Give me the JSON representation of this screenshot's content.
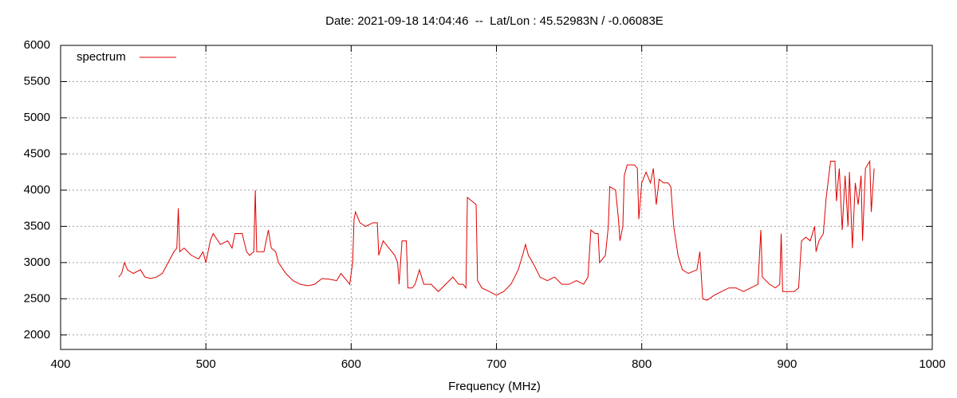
{
  "chart_data": {
    "type": "line",
    "title": "Date: 2021-09-18 14:04:46  --  Lat/Lon : 45.52983N / -0.06083E",
    "x_label": "Frequency (MHz)",
    "xlim": [
      400,
      1000
    ],
    "xticks": [
      400,
      500,
      600,
      700,
      800,
      900,
      1000
    ],
    "ylim": [
      1800,
      6000
    ],
    "yticks": [
      2000,
      2500,
      3000,
      3500,
      4000,
      4500,
      5000,
      5500,
      6000
    ],
    "grid": true,
    "legend": "top-left",
    "x": [
      440,
      442,
      444,
      446,
      450,
      455,
      458,
      462,
      466,
      470,
      474,
      478,
      480,
      481,
      482,
      485,
      490,
      495,
      498,
      500,
      503,
      505,
      510,
      515,
      518,
      520,
      525,
      528,
      530,
      533,
      534,
      535,
      540,
      543,
      545,
      548,
      550,
      555,
      560,
      565,
      570,
      575,
      578,
      580,
      585,
      590,
      593,
      597,
      599,
      601,
      602,
      603,
      606,
      610,
      615,
      618,
      619,
      622,
      626,
      630,
      632,
      633,
      635,
      638,
      639,
      642,
      644,
      647,
      650,
      655,
      660,
      665,
      670,
      674,
      677,
      679,
      680,
      683,
      686,
      687,
      690,
      695,
      700,
      705,
      710,
      715,
      718,
      720,
      722,
      725,
      730,
      735,
      740,
      745,
      750,
      755,
      760,
      763,
      765,
      768,
      770,
      771,
      775,
      777,
      778,
      782,
      784,
      785,
      787,
      788,
      790,
      795,
      797,
      798,
      800,
      803,
      806,
      808,
      810,
      812,
      815,
      818,
      820,
      822,
      825,
      828,
      832,
      838,
      840,
      842,
      845,
      850,
      855,
      860,
      865,
      870,
      875,
      880,
      882,
      883,
      888,
      892,
      895,
      896,
      897,
      900,
      905,
      908,
      910,
      913,
      916,
      919,
      920,
      922,
      925,
      927,
      930,
      933,
      934,
      936,
      938,
      940,
      942,
      943,
      945,
      947,
      949,
      951,
      952,
      954,
      957,
      958,
      960
    ],
    "series": [
      {
        "name": "spectrum",
        "color": "#e00000",
        "values": [
          2800,
          2850,
          3000,
          2900,
          2850,
          2900,
          2800,
          2780,
          2800,
          2850,
          3000,
          3150,
          3200,
          3750,
          3150,
          3200,
          3100,
          3050,
          3150,
          3000,
          3300,
          3400,
          3250,
          3300,
          3200,
          3400,
          3400,
          3150,
          3100,
          3150,
          4000,
          3150,
          3150,
          3450,
          3200,
          3150,
          3000,
          2850,
          2750,
          2700,
          2680,
          2700,
          2750,
          2780,
          2770,
          2750,
          2850,
          2750,
          2700,
          3000,
          3600,
          3700,
          3550,
          3500,
          3550,
          3550,
          3100,
          3300,
          3200,
          3100,
          3000,
          2700,
          3300,
          3300,
          2650,
          2650,
          2700,
          2900,
          2700,
          2700,
          2600,
          2700,
          2800,
          2700,
          2700,
          2650,
          3900,
          3850,
          3800,
          2750,
          2650,
          2600,
          2550,
          2600,
          2700,
          2900,
          3100,
          3250,
          3100,
          3000,
          2800,
          2750,
          2800,
          2700,
          2700,
          2750,
          2700,
          2800,
          3450,
          3400,
          3400,
          3000,
          3100,
          3500,
          4050,
          4000,
          3600,
          3300,
          3500,
          4200,
          4350,
          4350,
          4300,
          3600,
          4100,
          4250,
          4100,
          4300,
          3800,
          4150,
          4100,
          4100,
          4050,
          3500,
          3100,
          2900,
          2850,
          2900,
          3150,
          2500,
          2480,
          2550,
          2600,
          2650,
          2650,
          2600,
          2650,
          2700,
          3450,
          2800,
          2700,
          2650,
          2700,
          3400,
          2600,
          2600,
          2600,
          2650,
          3300,
          3350,
          3300,
          3500,
          3150,
          3300,
          3400,
          3900,
          4400,
          4400,
          3850,
          4300,
          3450,
          4200,
          3500,
          4250,
          3200,
          4100,
          3800,
          4200,
          3300,
          4300,
          4400,
          3700,
          4300
        ]
      }
    ]
  }
}
